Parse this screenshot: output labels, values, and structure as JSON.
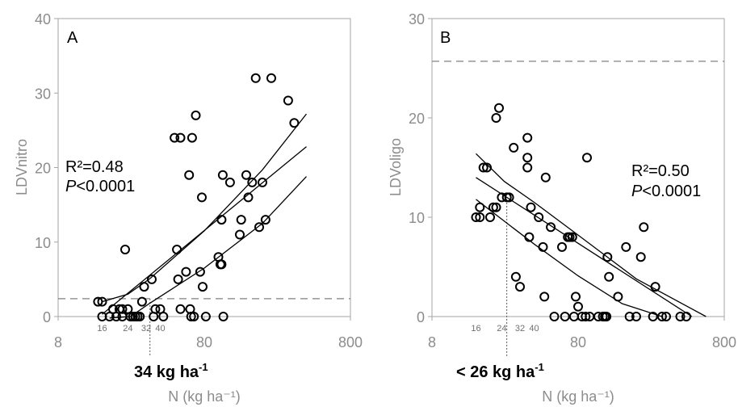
{
  "chart_data": [
    {
      "panel_label": "A",
      "type": "scatter",
      "ylabel": "LDVnitro",
      "xlabel": "N (kg ha⁻¹)",
      "x_scale": "log",
      "xlim": [
        8,
        800
      ],
      "ylim": [
        0,
        40
      ],
      "x_ticks": [
        "8",
        "80",
        "800"
      ],
      "y_ticks": [
        "0",
        "10",
        "20",
        "30",
        "40"
      ],
      "small_x_ticks": [
        "16",
        "24",
        "32",
        "40"
      ],
      "stats": {
        "r2": "R²=0.48",
        "p_prefix": "P",
        "p_rest": "<0.0001"
      },
      "threshold_text": {
        "main": "34 kg ha",
        "sup": "-1"
      },
      "threshold_x": 34,
      "dashed_y": 2.4,
      "fit_line": {
        "x0": 16,
        "x1": 400,
        "y0": 0.3,
        "y1": 22.8
      },
      "ci_lower": [
        [
          18,
          -0.2
        ],
        [
          25,
          0
        ],
        [
          34,
          1.8
        ],
        [
          80,
          6.5
        ],
        [
          200,
          12.5
        ],
        [
          400,
          18.8
        ]
      ],
      "ci_upper": [
        [
          16,
          2.0
        ],
        [
          24,
          3.0
        ],
        [
          34,
          5.1
        ],
        [
          80,
          11.5
        ],
        [
          200,
          19.7
        ],
        [
          400,
          27.2
        ]
      ],
      "points": [
        [
          15,
          2
        ],
        [
          16,
          2
        ],
        [
          16,
          0
        ],
        [
          18,
          0
        ],
        [
          19,
          1
        ],
        [
          20,
          0
        ],
        [
          21,
          1
        ],
        [
          22,
          1
        ],
        [
          22,
          0
        ],
        [
          24,
          1
        ],
        [
          25,
          0
        ],
        [
          26,
          0
        ],
        [
          27,
          0
        ],
        [
          28,
          0
        ],
        [
          29,
          0
        ],
        [
          30,
          2
        ],
        [
          31,
          4
        ],
        [
          23,
          9
        ],
        [
          35,
          5
        ],
        [
          36,
          0
        ],
        [
          37,
          1
        ],
        [
          42,
          0
        ],
        [
          40,
          1
        ],
        [
          50,
          24
        ],
        [
          55,
          24
        ],
        [
          52,
          9
        ],
        [
          53,
          5
        ],
        [
          55,
          1
        ],
        [
          60,
          6
        ],
        [
          63,
          19
        ],
        [
          64,
          1
        ],
        [
          65,
          0
        ],
        [
          66,
          24
        ],
        [
          70,
          27
        ],
        [
          68,
          0
        ],
        [
          75,
          6
        ],
        [
          77,
          16
        ],
        [
          78,
          4
        ],
        [
          82,
          0
        ],
        [
          100,
          8
        ],
        [
          105,
          7
        ],
        [
          103,
          7
        ],
        [
          105,
          13
        ],
        [
          108,
          0
        ],
        [
          107,
          19
        ],
        [
          120,
          18
        ],
        [
          140,
          11
        ],
        [
          143,
          13
        ],
        [
          155,
          19
        ],
        [
          160,
          16
        ],
        [
          170,
          18
        ],
        [
          200,
          18
        ],
        [
          190,
          12
        ],
        [
          210,
          13
        ],
        [
          180,
          32
        ],
        [
          230,
          32
        ],
        [
          300,
          29
        ],
        [
          330,
          26
        ]
      ]
    },
    {
      "panel_label": "B",
      "type": "scatter",
      "ylabel": "LDVoligo",
      "xlabel": "N (kg ha⁻¹)",
      "x_scale": "log",
      "xlim": [
        8,
        800
      ],
      "ylim": [
        0,
        30
      ],
      "x_ticks": [
        "8",
        "80",
        "800"
      ],
      "y_ticks": [
        "0",
        "10",
        "20",
        "30"
      ],
      "small_x_ticks": [
        "16",
        "24",
        "32",
        "40"
      ],
      "stats": {
        "r2": "R²=0.50",
        "p_prefix": "P",
        "p_rest": "<0.0001"
      },
      "threshold_text": {
        "main": "< 26 kg ha",
        "sup": "-1"
      },
      "threshold_x": 26,
      "dashed_y": 25.7,
      "fit_line": {
        "x0": 16,
        "x1": 480,
        "y0": 14.0,
        "y1": 0.0
      },
      "ci_lower": [
        [
          16,
          11.8
        ],
        [
          25,
          9.6
        ],
        [
          40,
          7.3
        ],
        [
          80,
          4.1
        ],
        [
          160,
          1.3
        ],
        [
          300,
          0
        ]
      ],
      "ci_upper": [
        [
          16,
          16.4
        ],
        [
          25,
          13.6
        ],
        [
          40,
          11.5
        ],
        [
          80,
          8.2
        ],
        [
          200,
          3.8
        ],
        [
          600,
          0
        ]
      ],
      "points": [
        [
          16,
          10
        ],
        [
          17,
          11
        ],
        [
          17,
          10
        ],
        [
          18,
          15
        ],
        [
          19,
          15
        ],
        [
          20,
          10
        ],
        [
          21,
          11
        ],
        [
          22,
          11
        ],
        [
          22,
          20
        ],
        [
          23,
          21
        ],
        [
          24,
          12
        ],
        [
          26,
          12
        ],
        [
          27,
          12
        ],
        [
          29,
          17
        ],
        [
          30,
          4
        ],
        [
          32,
          3
        ],
        [
          36,
          18
        ],
        [
          36,
          16
        ],
        [
          36,
          15
        ],
        [
          37,
          8
        ],
        [
          38,
          11
        ],
        [
          43,
          10
        ],
        [
          46,
          7
        ],
        [
          47,
          2
        ],
        [
          48,
          14
        ],
        [
          52,
          9
        ],
        [
          55,
          0
        ],
        [
          62,
          7
        ],
        [
          65,
          0
        ],
        [
          68,
          8
        ],
        [
          70,
          8
        ],
        [
          73,
          8
        ],
        [
          75,
          0
        ],
        [
          77,
          2
        ],
        [
          80,
          1
        ],
        [
          85,
          0
        ],
        [
          92,
          16
        ],
        [
          90,
          0
        ],
        [
          96,
          0
        ],
        [
          110,
          0
        ],
        [
          118,
          0
        ],
        [
          122,
          0
        ],
        [
          125,
          0
        ],
        [
          127,
          6
        ],
        [
          130,
          4
        ],
        [
          150,
          2
        ],
        [
          170,
          7
        ],
        [
          180,
          0
        ],
        [
          200,
          0
        ],
        [
          215,
          6
        ],
        [
          225,
          9
        ],
        [
          260,
          0
        ],
        [
          270,
          3
        ],
        [
          300,
          0
        ],
        [
          320,
          0
        ],
        [
          400,
          0
        ],
        [
          440,
          0
        ]
      ]
    }
  ]
}
